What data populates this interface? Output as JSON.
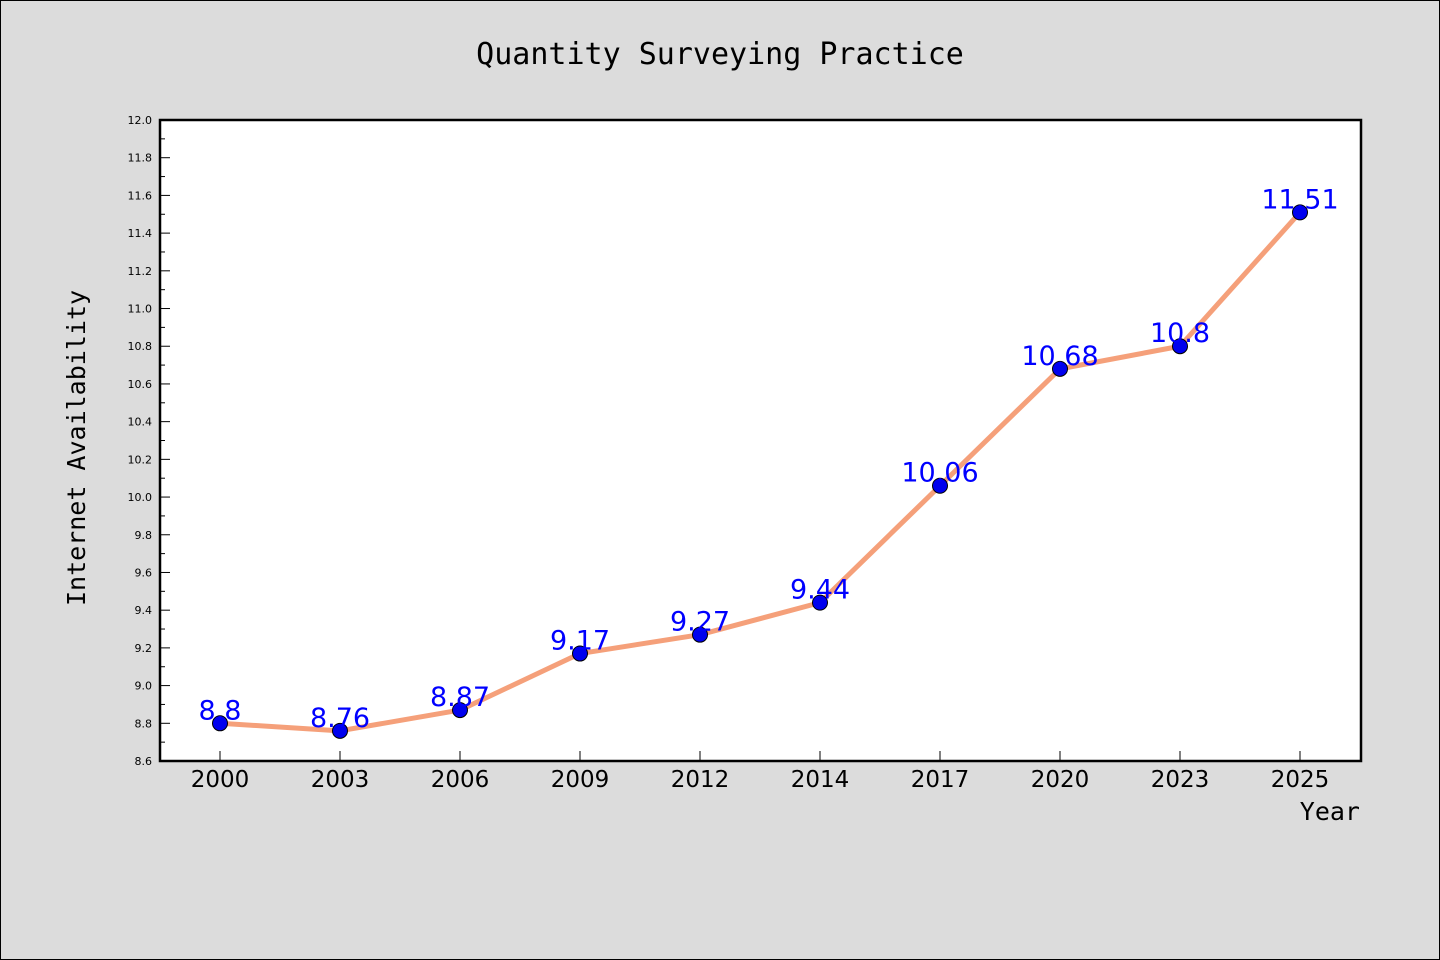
{
  "chart_data": {
    "type": "line",
    "title": "Quantity Surveying Practice",
    "xlabel": "Year",
    "ylabel": "Internet Availability",
    "categories": [
      "2000",
      "2003",
      "2006",
      "2009",
      "2012",
      "2014",
      "2017",
      "2020",
      "2023",
      "2025"
    ],
    "series": [
      {
        "values": [
          8.8,
          8.76,
          8.87,
          9.17,
          9.27,
          9.44,
          10.06,
          10.68,
          10.8,
          11.51
        ],
        "data_labels": [
          "8.8",
          "8.76",
          "8.87",
          "9.17",
          "9.27",
          "9.44",
          "10.06",
          "10.68",
          "10.8",
          "11.51"
        ],
        "line_color": "#f5a07a",
        "marker_color": "#0000ee",
        "label_color": "#0000ff"
      }
    ],
    "ylim": [
      8.6,
      12.0
    ],
    "yticks": [
      "8.6",
      "8.8",
      "9.0",
      "9.2",
      "9.4",
      "9.6",
      "9.8",
      "10.0",
      "10.2",
      "10.4",
      "10.6",
      "10.8",
      "11.0",
      "11.2",
      "11.4",
      "11.6",
      "11.8",
      "12.0"
    ],
    "grid": false,
    "legend": "none"
  }
}
